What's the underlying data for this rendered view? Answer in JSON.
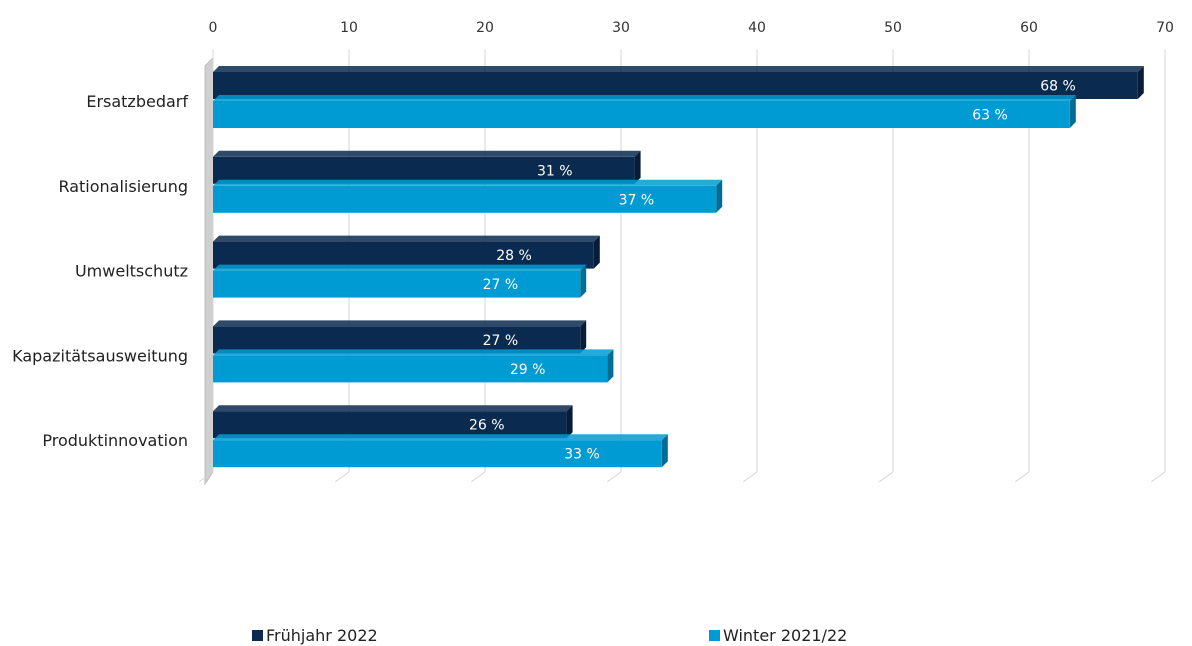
{
  "chart_data": {
    "type": "bar",
    "orientation": "horizontal",
    "categories": [
      "Ersatzbedarf",
      "Rationalisierung",
      "Umweltschutz",
      "Kapazitätsausweitung",
      "Produktinnovation"
    ],
    "series": [
      {
        "name": "Frühjahr 2022",
        "values": [
          68,
          31,
          28,
          27,
          26
        ],
        "labels": [
          "68 %",
          "31 %",
          "28 %",
          "27 %",
          "26 %"
        ],
        "color": "#0a2a4f"
      },
      {
        "name": "Winter 2021/22",
        "values": [
          63,
          37,
          27,
          29,
          33
        ],
        "labels": [
          "63 %",
          "37 %",
          "27 %",
          "29 %",
          "33 %"
        ],
        "color": "#009bd3"
      }
    ],
    "x_ticks": [
      "0",
      "10",
      "20",
      "30",
      "40",
      "50",
      "60",
      "70"
    ],
    "xlim": [
      0,
      70
    ],
    "grid": true,
    "legend_position": "bottom"
  }
}
